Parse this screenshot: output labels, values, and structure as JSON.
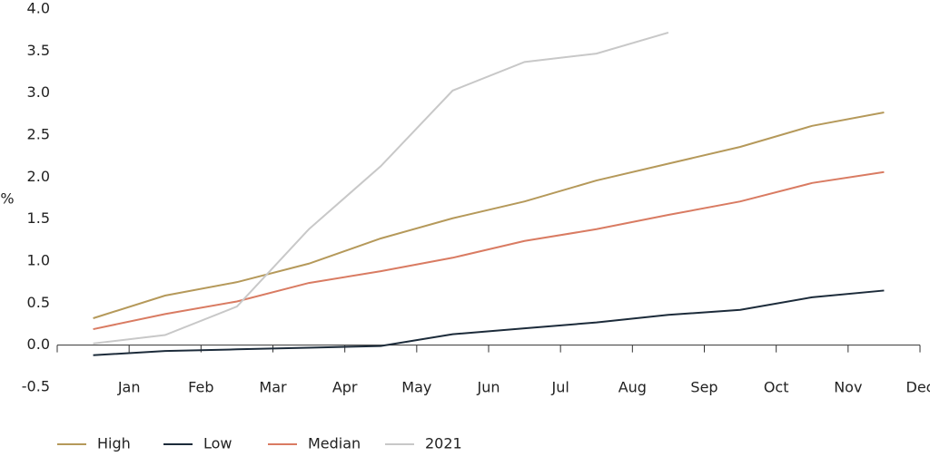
{
  "chart_data": {
    "type": "line",
    "y_label": "%",
    "categories": [
      "Jan",
      "Feb",
      "Mar",
      "Apr",
      "May",
      "Jun",
      "Jul",
      "Aug",
      "Sep",
      "Oct",
      "Nov",
      "Dec"
    ],
    "series": [
      {
        "name": "High",
        "color": "#b5995a",
        "values": [
          0.32,
          0.59,
          0.75,
          0.97,
          1.27,
          1.51,
          1.71,
          1.96,
          2.16,
          2.36,
          2.61,
          2.77
        ]
      },
      {
        "name": "Low",
        "color": "#1c2b3a",
        "values": [
          -0.12,
          -0.07,
          -0.05,
          -0.03,
          -0.01,
          0.13,
          0.2,
          0.27,
          0.36,
          0.42,
          0.57,
          0.65
        ]
      },
      {
        "name": "Median",
        "color": "#d97b62",
        "values": [
          0.19,
          0.37,
          0.52,
          0.74,
          0.88,
          1.04,
          1.24,
          1.38,
          1.55,
          1.71,
          1.93,
          2.06
        ]
      },
      {
        "name": "2021",
        "color": "#c8c8c8",
        "values": [
          0.02,
          0.12,
          0.46,
          1.38,
          2.13,
          3.03,
          3.37,
          3.47,
          3.72,
          null,
          null,
          null
        ]
      }
    ],
    "ylim": [
      -0.5,
      4.0
    ],
    "yticks": [
      {
        "value": -0.5,
        "label": "-0.5"
      },
      {
        "value": 0,
        "label": "0.0"
      },
      0.5,
      {
        "value": 1,
        "label": "1.0"
      },
      1.5,
      {
        "value": 2,
        "label": "2.0"
      },
      2.5,
      {
        "value": 3,
        "label": "3.0"
      },
      3.5,
      {
        "value": 4,
        "label": "4.0"
      }
    ],
    "legend": "bottom"
  }
}
